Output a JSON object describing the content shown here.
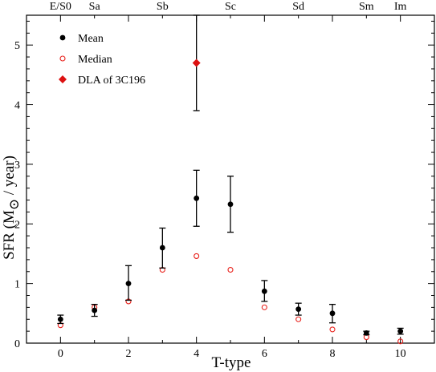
{
  "chart_data": {
    "type": "scatter",
    "xlabel": "T-type",
    "ylabel_main": "SFR (M",
    "ylabel_sub": "⊙",
    "ylabel_tail": " / year)",
    "xlim": [
      -1,
      11
    ],
    "ylim": [
      0,
      5.5
    ],
    "x_ticks": [
      0,
      2,
      4,
      6,
      8,
      10
    ],
    "y_ticks": [
      0,
      1,
      2,
      3,
      4,
      5
    ],
    "top_axis_labels": [
      {
        "x": 0,
        "label": "E/S0"
      },
      {
        "x": 1,
        "label": "Sa"
      },
      {
        "x": 3,
        "label": "Sb"
      },
      {
        "x": 5,
        "label": "Sc"
      },
      {
        "x": 7,
        "label": "Sd"
      },
      {
        "x": 9,
        "label": "Sm"
      },
      {
        "x": 10,
        "label": "Im"
      }
    ],
    "legend": {
      "placement": "top-left",
      "entries": [
        {
          "label": "Mean",
          "marker": "filled-circle",
          "color": "#000000"
        },
        {
          "label": "Median",
          "marker": "open-circle",
          "color": "#e8201a"
        },
        {
          "label": "DLA of 3C196",
          "marker": "filled-diamond",
          "color": "#dd1111"
        }
      ]
    },
    "series": [
      {
        "name": "Mean",
        "color": "#000000",
        "points": [
          {
            "x": 0,
            "y": 0.4,
            "err_lo": 0.33,
            "err_hi": 0.47
          },
          {
            "x": 1,
            "y": 0.55,
            "err_lo": 0.45,
            "err_hi": 0.65
          },
          {
            "x": 2,
            "y": 1.0,
            "err_lo": 0.72,
            "err_hi": 1.3
          },
          {
            "x": 3,
            "y": 1.6,
            "err_lo": 1.26,
            "err_hi": 1.93
          },
          {
            "x": 4,
            "y": 2.43,
            "err_lo": 1.96,
            "err_hi": 2.9
          },
          {
            "x": 5,
            "y": 2.33,
            "err_lo": 1.86,
            "err_hi": 2.8
          },
          {
            "x": 6,
            "y": 0.87,
            "err_lo": 0.7,
            "err_hi": 1.05
          },
          {
            "x": 7,
            "y": 0.57,
            "err_lo": 0.47,
            "err_hi": 0.67
          },
          {
            "x": 8,
            "y": 0.5,
            "err_lo": 0.34,
            "err_hi": 0.65
          },
          {
            "x": 9,
            "y": 0.17,
            "err_lo": 0.14,
            "err_hi": 0.2
          },
          {
            "x": 10,
            "y": 0.2,
            "err_lo": 0.15,
            "err_hi": 0.25
          }
        ]
      },
      {
        "name": "Median",
        "color": "#e8201a",
        "points": [
          {
            "x": 0,
            "y": 0.3
          },
          {
            "x": 1,
            "y": 0.6
          },
          {
            "x": 2,
            "y": 0.7
          },
          {
            "x": 3,
            "y": 1.23
          },
          {
            "x": 4,
            "y": 1.46
          },
          {
            "x": 5,
            "y": 1.23
          },
          {
            "x": 6,
            "y": 0.6
          },
          {
            "x": 7,
            "y": 0.4
          },
          {
            "x": 8,
            "y": 0.23
          },
          {
            "x": 9,
            "y": 0.1
          },
          {
            "x": 10,
            "y": 0.03
          }
        ]
      },
      {
        "name": "DLA of 3C196",
        "color": "#dd1111",
        "points": [
          {
            "x": 4,
            "y": 4.7,
            "err_lo": 3.9,
            "err_hi": 5.5
          }
        ]
      }
    ]
  }
}
